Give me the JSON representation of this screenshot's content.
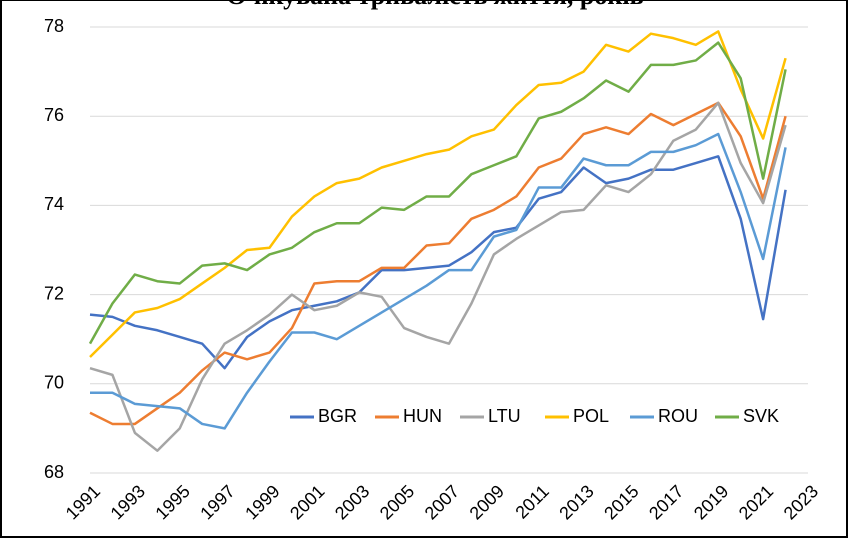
{
  "chart_data": {
    "type": "line",
    "title": "Очікувана тривалість життя, років",
    "x": [
      1991,
      1992,
      1993,
      1994,
      1995,
      1996,
      1997,
      1998,
      1999,
      2000,
      2001,
      2002,
      2003,
      2004,
      2005,
      2006,
      2007,
      2008,
      2009,
      2010,
      2011,
      2012,
      2013,
      2014,
      2015,
      2016,
      2017,
      2018,
      2019,
      2020,
      2021,
      2022
    ],
    "series": [
      {
        "name": "BGR",
        "color": "#4472c4",
        "values": [
          71.55,
          71.5,
          71.3,
          71.2,
          71.05,
          70.9,
          70.35,
          71.05,
          71.4,
          71.65,
          71.75,
          71.85,
          72.05,
          72.55,
          72.55,
          72.6,
          72.65,
          72.95,
          73.4,
          73.5,
          74.15,
          74.3,
          74.85,
          74.5,
          74.6,
          74.8,
          74.8,
          74.95,
          75.1,
          73.7,
          71.45,
          74.35
        ]
      },
      {
        "name": "HUN",
        "color": "#ed7d31",
        "values": [
          69.35,
          69.1,
          69.1,
          69.45,
          69.8,
          70.3,
          70.7,
          70.55,
          70.7,
          71.25,
          72.25,
          72.3,
          72.3,
          72.6,
          72.6,
          73.1,
          73.15,
          73.7,
          73.9,
          74.2,
          74.85,
          75.05,
          75.6,
          75.75,
          75.6,
          76.05,
          75.8,
          76.05,
          76.3,
          75.55,
          74.15,
          76.0
        ]
      },
      {
        "name": "LTU",
        "color": "#a5a5a5",
        "values": [
          70.35,
          70.2,
          68.9,
          68.5,
          69.0,
          70.1,
          70.9,
          71.2,
          71.55,
          72.0,
          71.65,
          71.75,
          72.05,
          71.95,
          71.25,
          71.05,
          70.9,
          71.8,
          72.9,
          73.25,
          73.55,
          73.85,
          73.9,
          74.45,
          74.3,
          74.7,
          75.45,
          75.7,
          76.3,
          74.95,
          74.05,
          75.8
        ]
      },
      {
        "name": "POL",
        "color": "#ffc000",
        "values": [
          70.6,
          71.1,
          71.6,
          71.7,
          71.9,
          72.25,
          72.6,
          73.0,
          73.05,
          73.75,
          74.2,
          74.5,
          74.6,
          74.85,
          75.0,
          75.15,
          75.25,
          75.55,
          75.7,
          76.25,
          76.7,
          76.75,
          77.0,
          77.6,
          77.45,
          77.85,
          77.75,
          77.6,
          77.9,
          76.6,
          75.5,
          77.3
        ]
      },
      {
        "name": "ROU",
        "color": "#5b9bd5",
        "values": [
          69.8,
          69.8,
          69.55,
          69.5,
          69.45,
          69.1,
          69.0,
          69.8,
          70.5,
          71.15,
          71.15,
          71.0,
          71.3,
          71.6,
          71.9,
          72.2,
          72.55,
          72.55,
          73.3,
          73.45,
          74.4,
          74.4,
          75.05,
          74.9,
          74.9,
          75.2,
          75.2,
          75.35,
          75.6,
          74.3,
          72.8,
          75.3
        ]
      },
      {
        "name": "SVK",
        "color": "#70ad47",
        "values": [
          70.9,
          71.8,
          72.45,
          72.3,
          72.25,
          72.65,
          72.7,
          72.55,
          72.9,
          73.05,
          73.4,
          73.6,
          73.6,
          73.95,
          73.9,
          74.2,
          74.2,
          74.7,
          74.9,
          75.1,
          75.95,
          76.1,
          76.4,
          76.8,
          76.55,
          77.15,
          77.15,
          77.25,
          77.65,
          76.85,
          74.6,
          77.05
        ]
      }
    ],
    "xlim": [
      1991,
      2023
    ],
    "xticks": [
      1991,
      1993,
      1995,
      1997,
      1999,
      2001,
      2003,
      2005,
      2007,
      2009,
      2011,
      2013,
      2015,
      2017,
      2019,
      2021,
      2023
    ],
    "ylim": [
      68,
      78
    ],
    "yticks": [
      68,
      70,
      72,
      74,
      76,
      78
    ],
    "grid": true,
    "legend": "lower right"
  }
}
